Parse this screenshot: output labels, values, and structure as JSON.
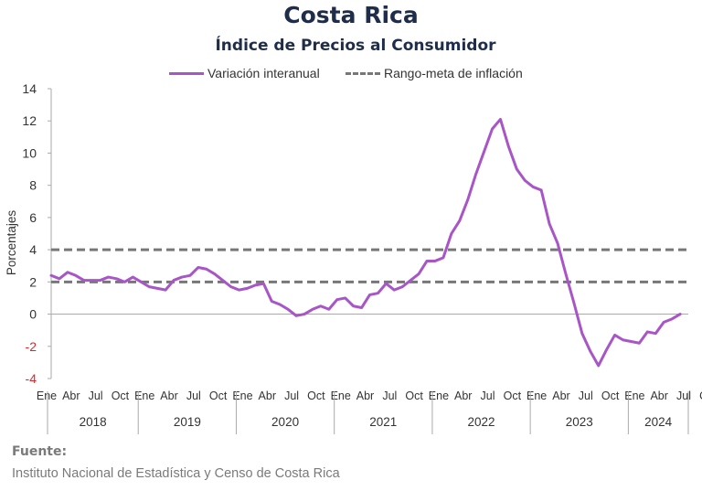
{
  "header": {
    "title": "Costa Rica",
    "subtitle": "Índice de Precios al Consumidor"
  },
  "legend": {
    "series_label": "Variación interanual",
    "target_label": "Rango-meta de inflación"
  },
  "source": {
    "label": "Fuente:",
    "text": "Instituto Nacional de Estadística y Censo de Costa Rica"
  },
  "colors": {
    "series": "#a855c8",
    "target": "#777777",
    "negative_tick": "#e0262b",
    "axis": "#aaaaaa",
    "text": "#333333"
  },
  "chart_data": {
    "type": "line",
    "ylabel": "Porcentajes",
    "ylim": [
      -4,
      14
    ],
    "yticks": [
      -4,
      -2,
      0,
      2,
      4,
      6,
      8,
      10,
      12,
      14
    ],
    "month_tick_labels": [
      "Ene",
      "Abr",
      "Jul",
      "Oct"
    ],
    "years": [
      "2018",
      "2019",
      "2020",
      "2021",
      "2022",
      "2023",
      "2024"
    ],
    "target_range": [
      2,
      4
    ],
    "series": [
      {
        "name": "Variación interanual",
        "x": [
          "2018-01",
          "2018-02",
          "2018-03",
          "2018-04",
          "2018-05",
          "2018-06",
          "2018-07",
          "2018-08",
          "2018-09",
          "2018-10",
          "2018-11",
          "2018-12",
          "2019-01",
          "2019-02",
          "2019-03",
          "2019-04",
          "2019-05",
          "2019-06",
          "2019-07",
          "2019-08",
          "2019-09",
          "2019-10",
          "2019-11",
          "2019-12",
          "2020-01",
          "2020-02",
          "2020-03",
          "2020-04",
          "2020-05",
          "2020-06",
          "2020-07",
          "2020-08",
          "2020-09",
          "2020-10",
          "2020-11",
          "2020-12",
          "2021-01",
          "2021-02",
          "2021-03",
          "2021-04",
          "2021-05",
          "2021-06",
          "2021-07",
          "2021-08",
          "2021-09",
          "2021-10",
          "2021-11",
          "2021-12",
          "2022-01",
          "2022-02",
          "2022-03",
          "2022-04",
          "2022-05",
          "2022-06",
          "2022-07",
          "2022-08",
          "2022-09",
          "2022-10",
          "2022-11",
          "2022-12",
          "2023-01",
          "2023-02",
          "2023-03",
          "2023-04",
          "2023-05",
          "2023-06",
          "2023-07",
          "2023-08",
          "2023-09",
          "2023-10",
          "2023-11",
          "2023-12",
          "2024-01",
          "2024-02",
          "2024-03",
          "2024-04",
          "2024-05",
          "2024-06"
        ],
        "values": [
          2.4,
          2.2,
          2.6,
          2.4,
          2.1,
          2.1,
          2.1,
          2.3,
          2.2,
          2.0,
          2.3,
          2.0,
          1.7,
          1.6,
          1.5,
          2.1,
          2.3,
          2.4,
          2.9,
          2.8,
          2.5,
          2.1,
          1.7,
          1.5,
          1.6,
          1.8,
          1.9,
          0.8,
          0.6,
          0.3,
          -0.1,
          0.0,
          0.3,
          0.5,
          0.3,
          0.9,
          1.0,
          0.5,
          0.4,
          1.2,
          1.3,
          1.9,
          1.5,
          1.7,
          2.1,
          2.5,
          3.3,
          3.3,
          3.5,
          5.0,
          5.8,
          7.1,
          8.7,
          10.1,
          11.5,
          12.1,
          10.4,
          9.0,
          8.3,
          7.9,
          7.7,
          5.6,
          4.4,
          2.5,
          0.7,
          -1.2,
          -2.3,
          -3.2,
          -2.2,
          -1.3,
          -1.6,
          -1.7,
          -1.8,
          -1.1,
          -1.2,
          -0.5,
          -0.3,
          0.0
        ]
      }
    ]
  }
}
